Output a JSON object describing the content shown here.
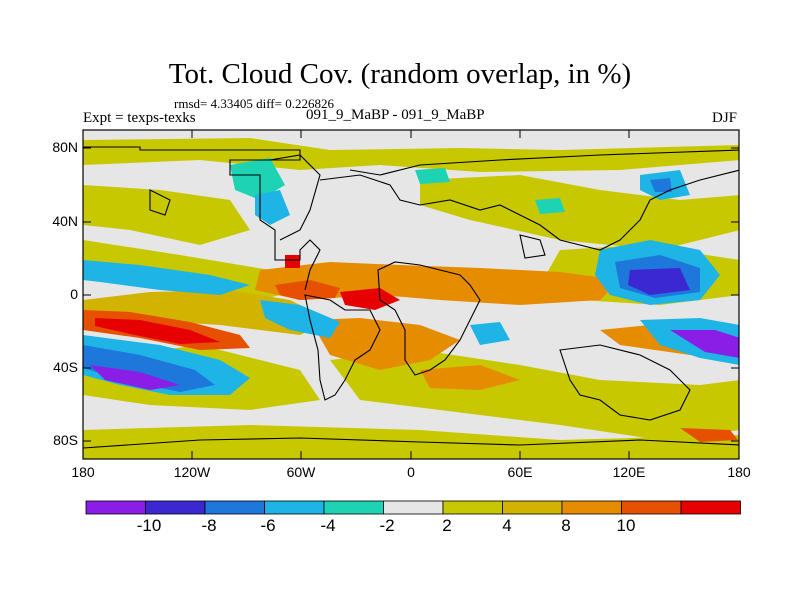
{
  "title": "Tot. Cloud Cov. (random overlap, in %)",
  "stats": "rmsd= 4.33405 diff= 0.226826",
  "experiment": "Expt = texps-texks",
  "subtitle": "091_9_MaBP - 091_9_MaBP",
  "season": "DJF",
  "lat_ticks": [
    "80N",
    "40N",
    "0",
    "40S",
    "80S"
  ],
  "lon_ticks": [
    "180",
    "120W",
    "60W",
    "0",
    "60E",
    "120E",
    "180"
  ],
  "colorbar": {
    "colors": [
      "#8a1ee6",
      "#3c28d2",
      "#1e78dc",
      "#1eb4e6",
      "#1ed2b4",
      "#e6e6e6",
      "#c8c800",
      "#d2b400",
      "#e68c00",
      "#e65000",
      "#e60000"
    ],
    "labels": [
      "-10",
      "-8",
      "-6",
      "-4",
      "-2",
      "2",
      "4",
      "8",
      "10"
    ]
  },
  "colors": {
    "land_outline": "#000000",
    "background_field": "#e6e6e6"
  }
}
